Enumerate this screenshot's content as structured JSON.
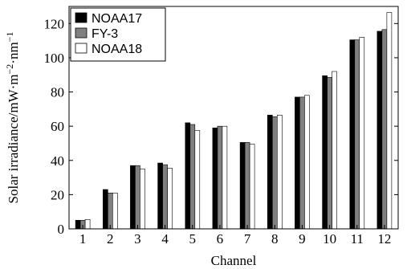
{
  "chart_data": {
    "type": "bar",
    "xlabel": "Channel",
    "ylabel": "Solar irradiance/mW·m",
    "ylabel_sup1": "−2",
    "ylabel_mid": "·nm",
    "ylabel_sup2": "−1",
    "categories": [
      "1",
      "2",
      "3",
      "4",
      "5",
      "6",
      "7",
      "8",
      "9",
      "10",
      "11",
      "12"
    ],
    "ylim": [
      0,
      130
    ],
    "yticks": [
      0,
      20,
      40,
      60,
      80,
      100,
      120
    ],
    "grid": false,
    "legend_position": "top-left",
    "series": [
      {
        "name": "NOAA17",
        "color": "#000000",
        "values": [
          5,
          23,
          37,
          38.5,
          62,
          59,
          50.5,
          66.5,
          77,
          89.5,
          110.5,
          115.5
        ]
      },
      {
        "name": "FY-3",
        "color": "#808080",
        "values": [
          5,
          21,
          37,
          37.5,
          61,
          60,
          50.5,
          65.5,
          77,
          88.5,
          110.5,
          116.5
        ]
      },
      {
        "name": "NOAA18",
        "color": "#ffffff",
        "values": [
          5.5,
          21,
          35,
          35.5,
          57.5,
          60,
          49.5,
          66.5,
          78,
          92,
          112,
          126.5
        ]
      }
    ]
  }
}
